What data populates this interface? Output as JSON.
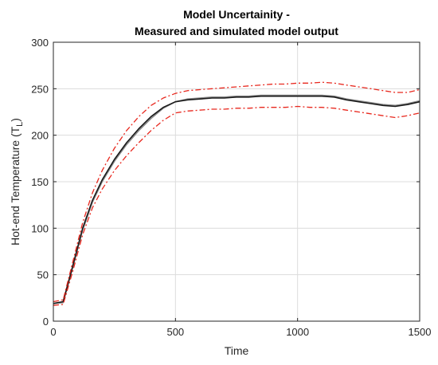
{
  "chart_data": {
    "type": "line",
    "title_line1": "Model Uncertainity -",
    "title_line2": "Measured and simulated model output",
    "xlabel": "Time",
    "ylabel_main": "Hot-end Temperature (T",
    "ylabel_sub": "L",
    "ylabel_close": ")",
    "xlim": [
      0,
      1500
    ],
    "ylim": [
      0,
      300
    ],
    "x_ticks": [
      0,
      500,
      1000,
      1500
    ],
    "y_ticks": [
      0,
      50,
      100,
      150,
      200,
      250,
      300
    ],
    "grid": true,
    "legend": "none",
    "series": [
      {
        "role": "measured",
        "color": "#8a8a8a",
        "style": "solid",
        "x": [
          0,
          40,
          80,
          120,
          160,
          200,
          250,
          300,
          350,
          400,
          450,
          500,
          550,
          600,
          650,
          700,
          750,
          800,
          850,
          900,
          950,
          1000,
          1050,
          1100,
          1150,
          1200,
          1250,
          1300,
          1350,
          1400,
          1450,
          1500
        ],
        "y": [
          19,
          20,
          58,
          98,
          128,
          150,
          172,
          190,
          205,
          218,
          229,
          236,
          239,
          240,
          241,
          241,
          242,
          242,
          243,
          243,
          243,
          243,
          243,
          243,
          242,
          239,
          237,
          235,
          233,
          232,
          234,
          237
        ]
      },
      {
        "role": "simulated",
        "color": "#1a1a1a",
        "style": "solid",
        "x": [
          0,
          40,
          80,
          120,
          160,
          200,
          250,
          300,
          350,
          400,
          450,
          500,
          550,
          600,
          650,
          700,
          750,
          800,
          850,
          900,
          950,
          1000,
          1050,
          1100,
          1150,
          1200,
          1250,
          1300,
          1350,
          1400,
          1450,
          1500
        ],
        "y": [
          19,
          21,
          60,
          100,
          130,
          152,
          174,
          192,
          207,
          220,
          230,
          236,
          238,
          239,
          240,
          240,
          241,
          241,
          242,
          242,
          242,
          242,
          242,
          242,
          241,
          238,
          236,
          234,
          232,
          231,
          233,
          236
        ]
      },
      {
        "role": "upper-bound",
        "color": "#e8281e",
        "style": "dashdot",
        "x": [
          0,
          40,
          80,
          120,
          160,
          200,
          250,
          300,
          350,
          400,
          450,
          500,
          550,
          600,
          650,
          700,
          750,
          800,
          850,
          900,
          950,
          1000,
          1050,
          1100,
          1150,
          1200,
          1250,
          1300,
          1350,
          1400,
          1450,
          1500
        ],
        "y": [
          21,
          23,
          64,
          106,
          138,
          162,
          186,
          205,
          220,
          232,
          240,
          245,
          248,
          249,
          250,
          251,
          252,
          253,
          254,
          255,
          255,
          256,
          256,
          257,
          256,
          254,
          252,
          250,
          248,
          246,
          246,
          249
        ]
      },
      {
        "role": "lower-bound",
        "color": "#e8281e",
        "style": "dashdot",
        "x": [
          0,
          40,
          80,
          120,
          160,
          200,
          250,
          300,
          350,
          400,
          450,
          500,
          550,
          600,
          650,
          700,
          750,
          800,
          850,
          900,
          950,
          1000,
          1050,
          1100,
          1150,
          1200,
          1250,
          1300,
          1350,
          1400,
          1450,
          1500
        ],
        "y": [
          17,
          18,
          54,
          93,
          122,
          142,
          162,
          178,
          192,
          205,
          216,
          224,
          226,
          227,
          228,
          228,
          229,
          229,
          230,
          230,
          230,
          231,
          230,
          230,
          229,
          227,
          225,
          223,
          221,
          219,
          221,
          224
        ]
      }
    ]
  }
}
